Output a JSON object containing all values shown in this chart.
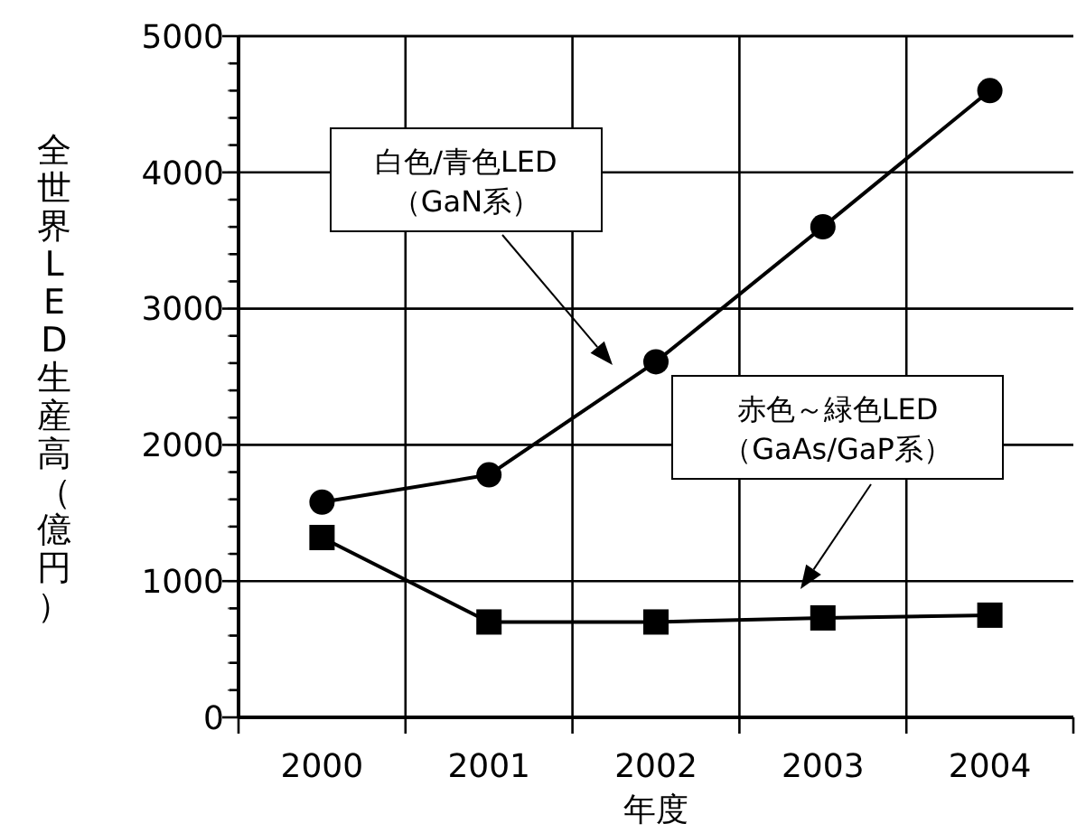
{
  "chart_data": {
    "type": "line",
    "xlabel": "年度",
    "ylabel": "全世界LED生産高（億円）",
    "categories": [
      "2000",
      "2001",
      "2002",
      "2003",
      "2004"
    ],
    "series": [
      {
        "color": "#000000",
        "marker": "circle",
        "values": [
          1580,
          1780,
          2610,
          3600,
          4600
        ]
      },
      {
        "color": "#000000",
        "marker": "square",
        "values": [
          1320,
          700,
          700,
          730,
          750
        ]
      }
    ],
    "annotations": [
      "白色/青色LED\n（GaN系）",
      "赤色～緑色LED\n（GaAs/GaP系）"
    ],
    "ylim": [
      0,
      5000
    ],
    "yticks": [
      0,
      {
        "value": 200,
        "label": null
      },
      {
        "value": 400,
        "label": null
      },
      {
        "value": 600,
        "label": null
      },
      {
        "value": 800,
        "label": null
      },
      1000,
      {
        "value": 1200,
        "label": null
      },
      {
        "value": 1400,
        "label": null
      },
      {
        "value": 1600,
        "label": null
      },
      {
        "value": 1800,
        "label": null
      },
      2000,
      {
        "value": 2200,
        "label": null
      },
      {
        "value": 2400,
        "label": null
      },
      {
        "value": 2600,
        "label": null
      },
      {
        "value": 2800,
        "label": null
      },
      3000,
      {
        "value": 3200,
        "label": null
      },
      {
        "value": 3400,
        "label": null
      },
      {
        "value": 3600,
        "label": null
      },
      {
        "value": 3800,
        "label": null
      },
      4000,
      {
        "value": 4200,
        "label": null
      },
      {
        "value": 4400,
        "label": null
      },
      {
        "value": 4600,
        "label": null
      },
      {
        "value": 4800,
        "label": null
      },
      5000
    ],
    "grid": true,
    "legend": false
  }
}
